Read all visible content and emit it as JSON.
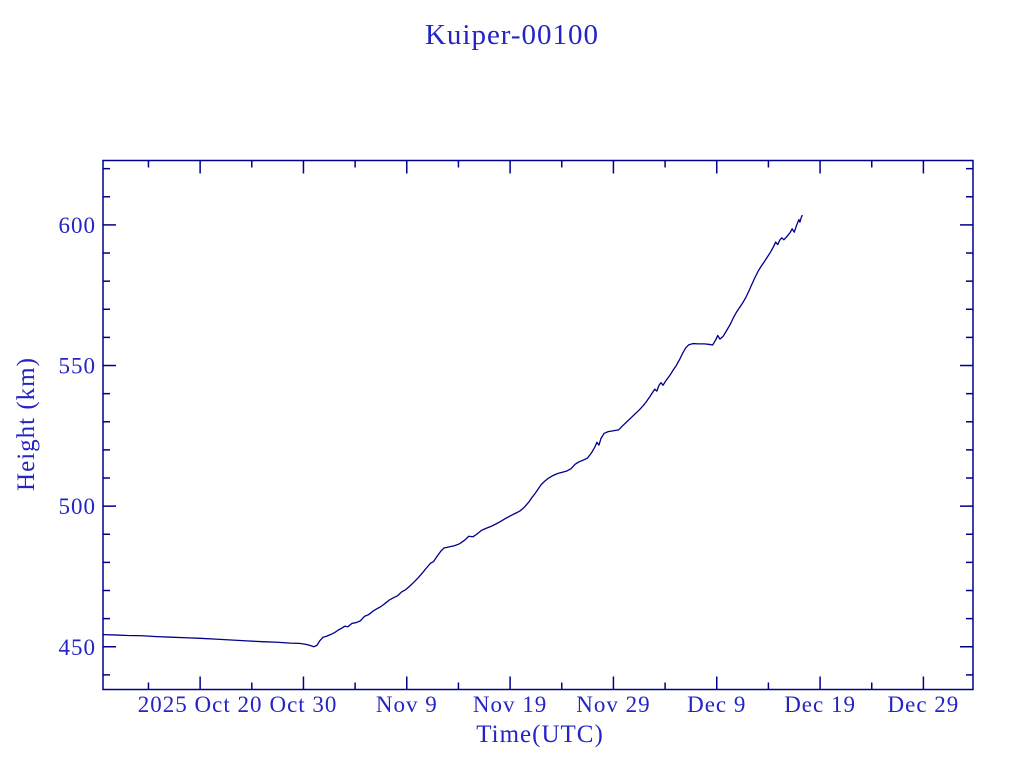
{
  "title": "Kuiper-00100",
  "colors": {
    "background": "#ffffff",
    "text": "#2424c4",
    "frame": "#00008b",
    "line": "#00008b"
  },
  "chart_data": {
    "type": "line",
    "title": "Kuiper-00100",
    "xlabel": "Time(UTC)",
    "ylabel": "Height (km)",
    "legend": "none",
    "grid": "off",
    "x_unit": "days since 2025 Oct 20 (UTC)",
    "xlim": [
      -9.4,
      74.8
    ],
    "ylim": [
      434.8,
      622.9
    ],
    "y_major_ticks": [
      450,
      500,
      550,
      600
    ],
    "y_minor_step": 10,
    "x_major_ticks": [
      {
        "day": 0,
        "label": "2025 Oct 20"
      },
      {
        "day": 10,
        "label": "Oct 30"
      },
      {
        "day": 20,
        "label": "Nov  9"
      },
      {
        "day": 30,
        "label": "Nov 19"
      },
      {
        "day": 40,
        "label": "Nov 29"
      },
      {
        "day": 50,
        "label": "Dec  9"
      },
      {
        "day": 60,
        "label": "Dec 19"
      },
      {
        "day": 70,
        "label": "Dec 29"
      }
    ],
    "x_minor_tick_days": [
      -5,
      5,
      15,
      25,
      35,
      45,
      55,
      65
    ],
    "series": [
      {
        "name": "Kuiper-00100",
        "points": [
          [
            -9.4,
            454.3
          ],
          [
            -8.3,
            454.2
          ],
          [
            -7.0,
            454.0
          ],
          [
            -5.6,
            453.9
          ],
          [
            -4.2,
            453.6
          ],
          [
            -2.8,
            453.4
          ],
          [
            -1.4,
            453.2
          ],
          [
            0.0,
            453.0
          ],
          [
            1.5,
            452.7
          ],
          [
            3.0,
            452.4
          ],
          [
            4.5,
            452.1
          ],
          [
            6.0,
            451.8
          ],
          [
            7.5,
            451.6
          ],
          [
            8.7,
            451.3
          ],
          [
            9.6,
            451.2
          ],
          [
            10.2,
            450.9
          ],
          [
            10.7,
            450.4
          ],
          [
            11.0,
            450.0
          ],
          [
            11.3,
            450.5
          ],
          [
            11.6,
            452.2
          ],
          [
            11.9,
            453.4
          ],
          [
            12.2,
            453.7
          ],
          [
            12.6,
            454.3
          ],
          [
            13.0,
            455.0
          ],
          [
            13.4,
            456.0
          ],
          [
            13.7,
            456.6
          ],
          [
            14.0,
            457.3
          ],
          [
            14.3,
            457.1
          ],
          [
            14.7,
            458.3
          ],
          [
            15.1,
            458.6
          ],
          [
            15.5,
            459.2
          ],
          [
            15.9,
            460.8
          ],
          [
            16.3,
            461.4
          ],
          [
            16.7,
            462.6
          ],
          [
            17.1,
            463.5
          ],
          [
            17.5,
            464.3
          ],
          [
            17.9,
            465.4
          ],
          [
            18.3,
            466.6
          ],
          [
            18.7,
            467.4
          ],
          [
            19.1,
            468.1
          ],
          [
            19.5,
            469.5
          ],
          [
            19.9,
            470.3
          ],
          [
            20.3,
            471.6
          ],
          [
            20.7,
            473.0
          ],
          [
            21.1,
            474.5
          ],
          [
            21.5,
            476.2
          ],
          [
            21.9,
            478.0
          ],
          [
            22.3,
            479.7
          ],
          [
            22.6,
            480.3
          ],
          [
            22.9,
            482.0
          ],
          [
            23.3,
            484.0
          ],
          [
            23.6,
            485.1
          ],
          [
            24.1,
            485.5
          ],
          [
            24.6,
            485.9
          ],
          [
            25.1,
            486.6
          ],
          [
            25.6,
            487.9
          ],
          [
            26.0,
            489.3
          ],
          [
            26.4,
            489.1
          ],
          [
            26.8,
            490.1
          ],
          [
            27.2,
            491.3
          ],
          [
            27.6,
            492.0
          ],
          [
            28.1,
            492.7
          ],
          [
            28.6,
            493.6
          ],
          [
            29.1,
            494.6
          ],
          [
            29.6,
            495.7
          ],
          [
            30.1,
            496.7
          ],
          [
            30.6,
            497.6
          ],
          [
            31.0,
            498.4
          ],
          [
            31.4,
            499.7
          ],
          [
            31.8,
            501.4
          ],
          [
            32.1,
            503.0
          ],
          [
            32.4,
            504.4
          ],
          [
            32.7,
            506.0
          ],
          [
            33.0,
            507.6
          ],
          [
            33.3,
            508.7
          ],
          [
            33.7,
            509.9
          ],
          [
            34.1,
            510.8
          ],
          [
            34.6,
            511.6
          ],
          [
            35.1,
            512.1
          ],
          [
            35.5,
            512.5
          ],
          [
            35.9,
            513.3
          ],
          [
            36.3,
            514.9
          ],
          [
            36.7,
            515.8
          ],
          [
            37.1,
            516.4
          ],
          [
            37.5,
            517.1
          ],
          [
            37.9,
            519.1
          ],
          [
            38.2,
            521.0
          ],
          [
            38.4,
            522.7
          ],
          [
            38.6,
            521.7
          ],
          [
            38.8,
            524.1
          ],
          [
            39.1,
            525.9
          ],
          [
            39.5,
            526.5
          ],
          [
            40.0,
            526.8
          ],
          [
            40.5,
            527.1
          ],
          [
            40.9,
            528.6
          ],
          [
            41.3,
            530.0
          ],
          [
            41.7,
            531.4
          ],
          [
            42.1,
            532.8
          ],
          [
            42.5,
            534.2
          ],
          [
            42.9,
            535.8
          ],
          [
            43.2,
            537.2
          ],
          [
            43.5,
            538.8
          ],
          [
            43.8,
            540.5
          ],
          [
            44.0,
            541.6
          ],
          [
            44.2,
            540.9
          ],
          [
            44.4,
            542.9
          ],
          [
            44.6,
            543.9
          ],
          [
            44.8,
            543.0
          ],
          [
            45.1,
            544.7
          ],
          [
            45.5,
            546.7
          ],
          [
            45.8,
            548.5
          ],
          [
            46.1,
            550.1
          ],
          [
            46.4,
            552.1
          ],
          [
            46.7,
            554.4
          ],
          [
            47.0,
            556.3
          ],
          [
            47.3,
            557.4
          ],
          [
            47.7,
            557.8
          ],
          [
            48.2,
            557.7
          ],
          [
            48.8,
            557.7
          ],
          [
            49.3,
            557.5
          ],
          [
            49.6,
            557.3
          ],
          [
            49.9,
            559.1
          ],
          [
            50.1,
            560.7
          ],
          [
            50.3,
            559.4
          ],
          [
            50.6,
            560.3
          ],
          [
            50.9,
            562.1
          ],
          [
            51.3,
            564.6
          ],
          [
            51.6,
            566.9
          ],
          [
            51.9,
            568.9
          ],
          [
            52.2,
            570.6
          ],
          [
            52.5,
            572.2
          ],
          [
            52.8,
            574.1
          ],
          [
            53.1,
            576.4
          ],
          [
            53.4,
            578.9
          ],
          [
            53.7,
            581.3
          ],
          [
            54.0,
            583.5
          ],
          [
            54.3,
            585.3
          ],
          [
            54.6,
            586.9
          ],
          [
            54.9,
            588.6
          ],
          [
            55.2,
            590.3
          ],
          [
            55.5,
            592.3
          ],
          [
            55.7,
            593.9
          ],
          [
            55.9,
            593.0
          ],
          [
            56.1,
            594.6
          ],
          [
            56.3,
            595.4
          ],
          [
            56.5,
            594.7
          ],
          [
            56.8,
            595.9
          ],
          [
            57.1,
            597.3
          ],
          [
            57.3,
            598.6
          ],
          [
            57.5,
            597.4
          ],
          [
            57.7,
            599.6
          ],
          [
            57.95,
            601.9
          ],
          [
            58.05,
            601.0
          ],
          [
            58.2,
            602.9
          ],
          [
            58.3,
            603.5
          ]
        ]
      }
    ]
  }
}
